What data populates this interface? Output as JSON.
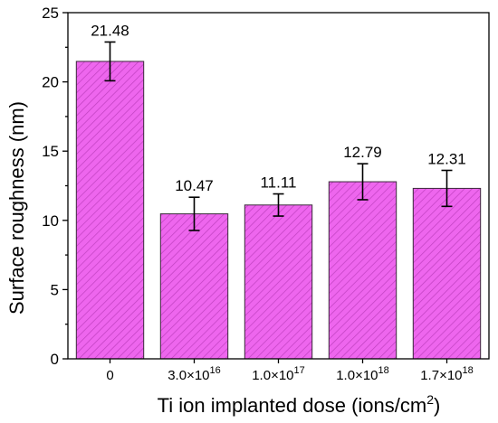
{
  "chart_data": {
    "type": "bar",
    "xlabel": "Ti ion implanted dose (ions/cm²)",
    "xlabel_parts": {
      "main": "Ti ion implanted dose (ions/cm",
      "sup": "2",
      "end": ")"
    },
    "ylabel": "Surface roughness (nm)",
    "ylim": [
      0,
      25
    ],
    "yticks": [
      0,
      5,
      10,
      15,
      20,
      25
    ],
    "yticks_labels": [
      "0",
      "5",
      "10",
      "15",
      "20",
      "25"
    ],
    "categories": [
      "0",
      "3.0×10¹⁶",
      "1.0×10¹⁷",
      "1.0×10¹⁸",
      "1.7×10¹⁸"
    ],
    "category_parts": [
      {
        "base": "0",
        "exp": ""
      },
      {
        "base": "3.0×10",
        "exp": "16"
      },
      {
        "base": "1.0×10",
        "exp": "17"
      },
      {
        "base": "1.0×10",
        "exp": "18"
      },
      {
        "base": "1.7×10",
        "exp": "18"
      }
    ],
    "values": [
      21.48,
      10.47,
      11.11,
      12.79,
      12.31
    ],
    "value_labels": [
      "21.48",
      "10.47",
      "11.11",
      "12.79",
      "12.31"
    ],
    "errors": [
      1.4,
      1.2,
      0.8,
      1.3,
      1.3
    ],
    "bar_color": "#ee66ee",
    "hatch_color": "#c040c0",
    "grid": false
  }
}
